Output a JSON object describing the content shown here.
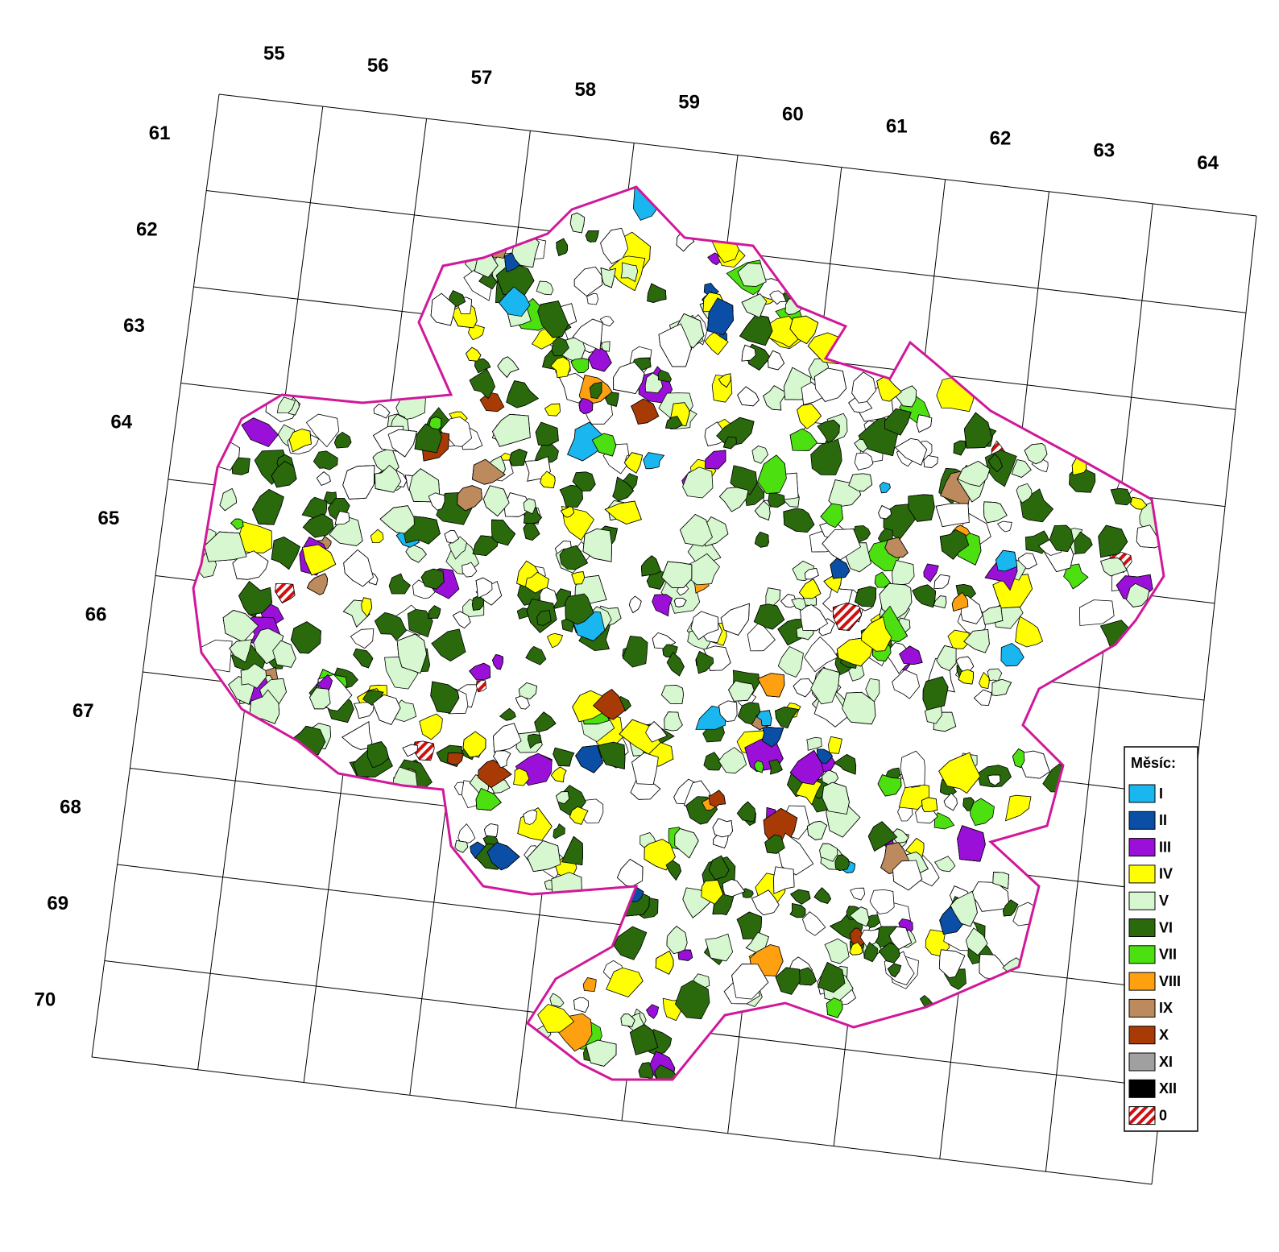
{
  "map": {
    "column_labels": [
      55,
      56,
      57,
      58,
      59,
      60,
      61,
      62,
      63,
      64
    ],
    "row_labels": [
      61,
      62,
      63,
      64,
      65,
      66,
      67,
      68,
      69,
      70
    ],
    "legend": {
      "title": "Měsíc:",
      "items": [
        {
          "label": "I",
          "color": "#19b6f0"
        },
        {
          "label": "II",
          "color": "#0b4ea6"
        },
        {
          "label": "III",
          "color": "#9b10d8"
        },
        {
          "label": "IV",
          "color": "#ffff00"
        },
        {
          "label": "V",
          "color": "#d6f7cf"
        },
        {
          "label": "VI",
          "color": "#2a6a0c"
        },
        {
          "label": "VII",
          "color": "#4ce010"
        },
        {
          "label": "VIII",
          "color": "#ffa010"
        },
        {
          "label": "IX",
          "color": "#bd8a5e"
        },
        {
          "label": "X",
          "color": "#a83a06"
        },
        {
          "label": "XI",
          "color": "#a0a0a0"
        },
        {
          "label": "XII",
          "color": "#000000"
        },
        {
          "label": "0",
          "color": "#d01010",
          "hatch": true
        }
      ]
    }
  }
}
